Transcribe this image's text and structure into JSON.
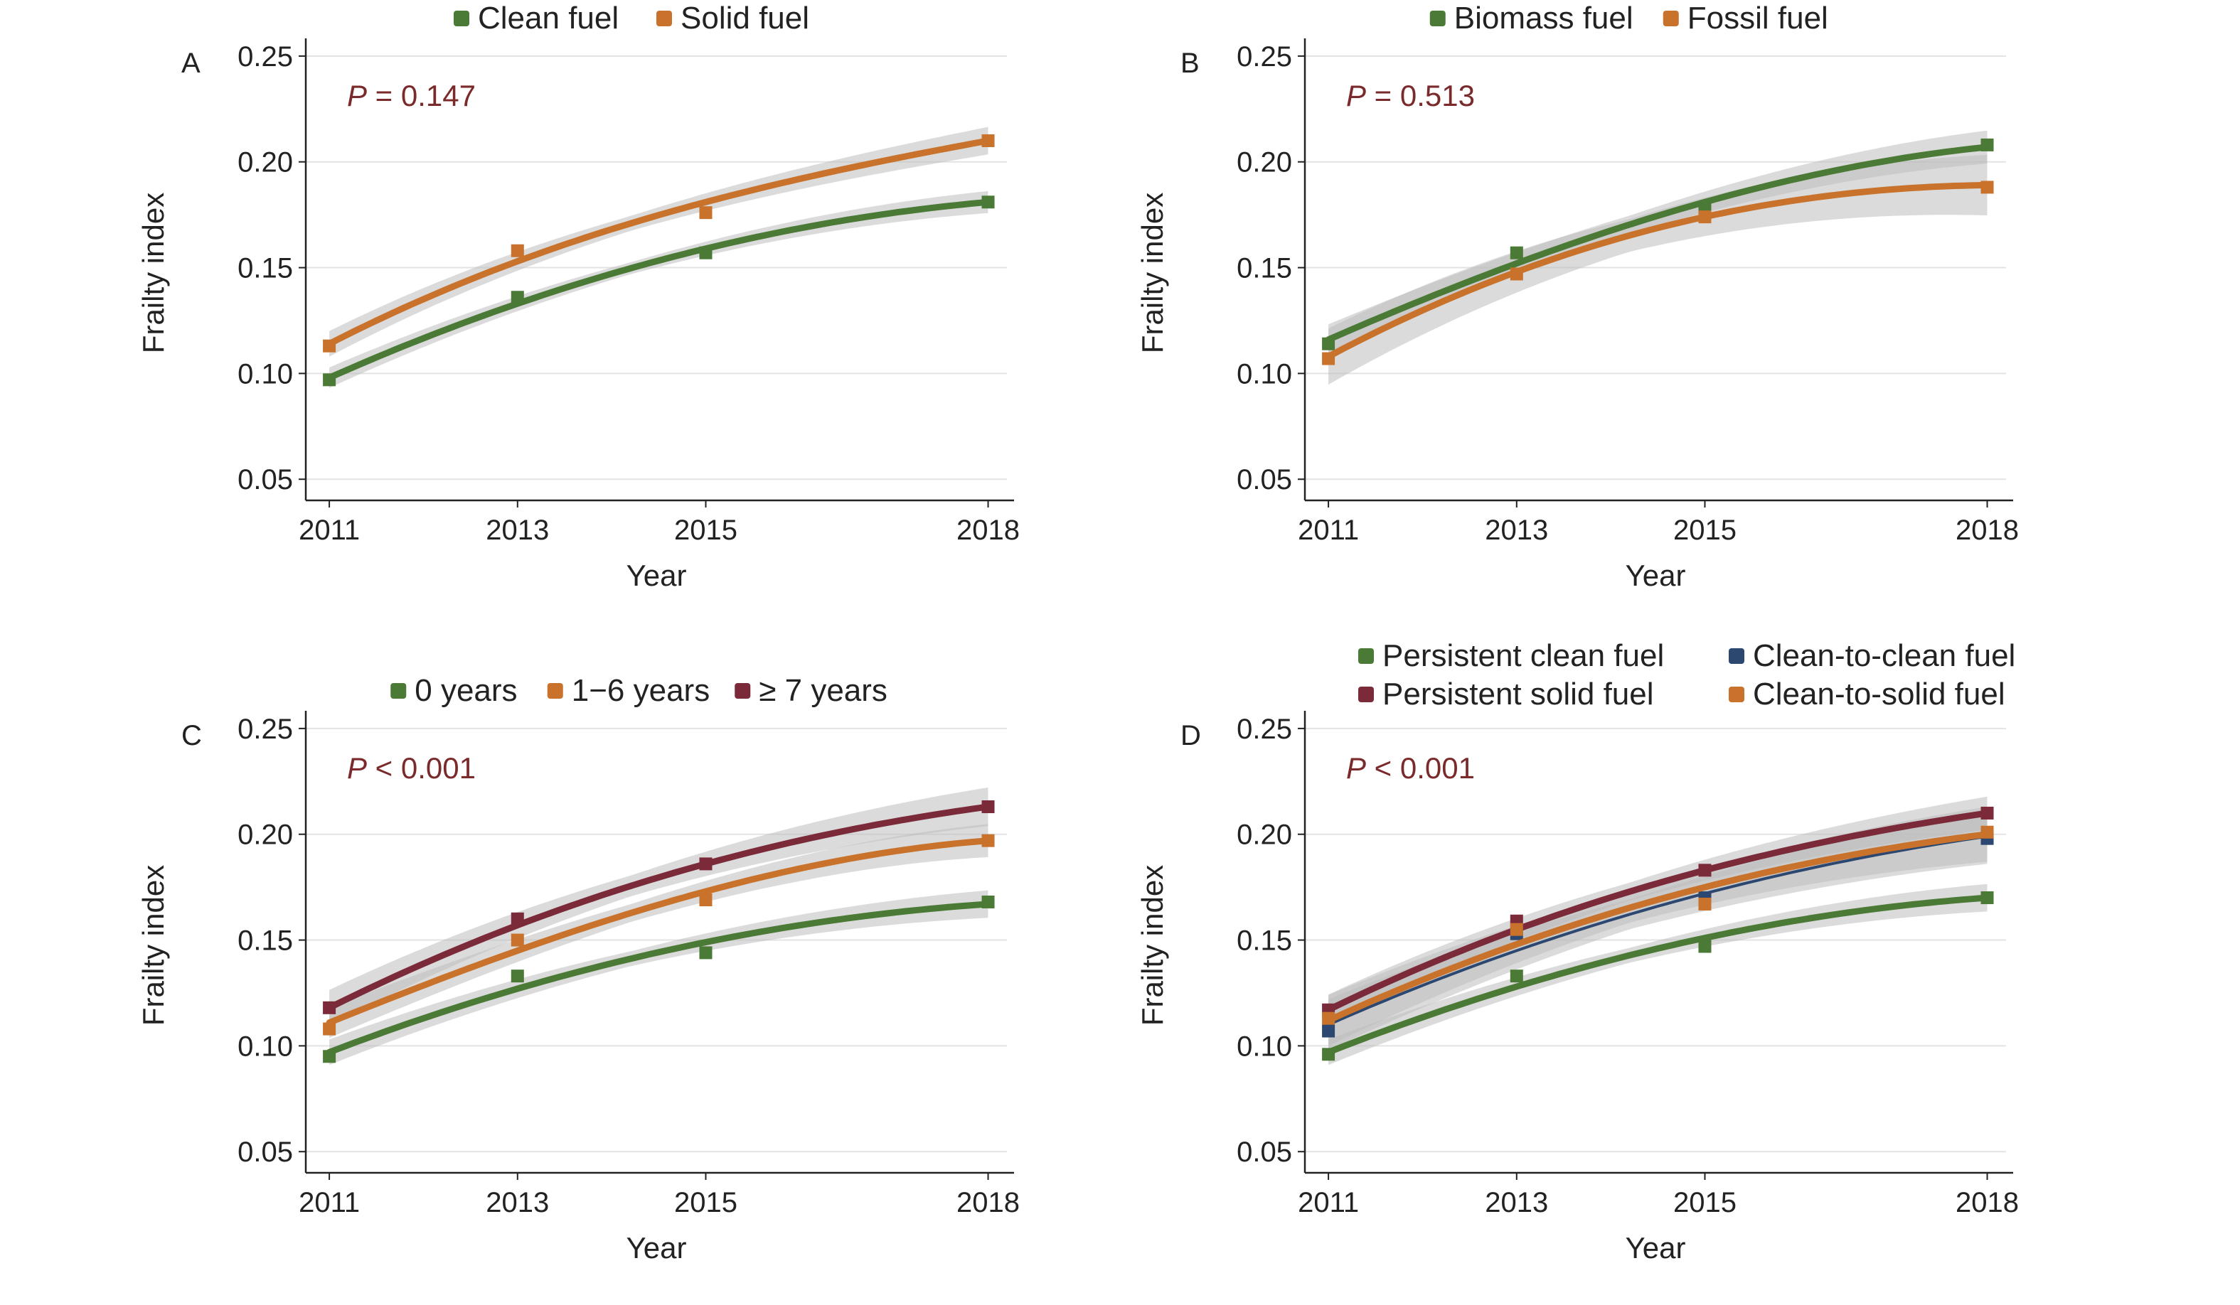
{
  "colors": {
    "green": "#4a7a35",
    "orange": "#c8722b",
    "maroon": "#7b2a3a",
    "navy": "#2c4770",
    "pvalue": "#7a2a2a",
    "band": "#bdbdbd",
    "grid": "#e3e3e3",
    "axis": "#222222"
  },
  "chart_data": [
    {
      "panel": "A",
      "type": "line",
      "pvalue": {
        "italic": "P",
        "rest": " = 0.147"
      },
      "xlabel": "Year",
      "ylabel": "Frailty index",
      "x_ticks": [
        2011,
        2013,
        2015,
        2018
      ],
      "ylim": [
        0.04,
        0.255
      ],
      "y_ticks": [
        "0.05",
        "0.10",
        "0.15",
        "0.20",
        "0.25"
      ],
      "grid": true,
      "legend_position": "top",
      "series": [
        {
          "name": "Clean fuel",
          "color": "#4a7a35",
          "points": [
            [
              2011,
              0.097
            ],
            [
              2013,
              0.136
            ],
            [
              2015,
              0.157
            ],
            [
              2018,
              0.181
            ]
          ],
          "fit": [
            0.098,
            0.133,
            0.159,
            0.181
          ],
          "ci": 0.004
        },
        {
          "name": "Solid fuel",
          "color": "#c8722b",
          "points": [
            [
              2011,
              0.113
            ],
            [
              2013,
              0.158
            ],
            [
              2015,
              0.176
            ],
            [
              2018,
              0.21
            ]
          ],
          "fit": [
            0.114,
            0.153,
            0.181,
            0.21
          ],
          "ci": 0.005
        }
      ]
    },
    {
      "panel": "B",
      "type": "line",
      "pvalue": {
        "italic": "P",
        "rest": " = 0.513"
      },
      "xlabel": "Year",
      "ylabel": "Frailty index",
      "x_ticks": [
        2011,
        2013,
        2015,
        2018
      ],
      "ylim": [
        0.04,
        0.255
      ],
      "y_ticks": [
        "0.05",
        "0.10",
        "0.15",
        "0.20",
        "0.25"
      ],
      "grid": true,
      "legend_position": "top",
      "series": [
        {
          "name": "Biomass fuel",
          "color": "#4a7a35",
          "points": [
            [
              2011,
              0.114
            ],
            [
              2013,
              0.157
            ],
            [
              2015,
              0.178
            ],
            [
              2018,
              0.208
            ]
          ],
          "fit": [
            0.116,
            0.152,
            0.181,
            0.207
          ],
          "ci": 0.006
        },
        {
          "name": "Fossil fuel",
          "color": "#c8722b",
          "points": [
            [
              2011,
              0.107
            ],
            [
              2013,
              0.147
            ],
            [
              2015,
              0.174
            ],
            [
              2018,
              0.188
            ]
          ],
          "fit": [
            0.108,
            0.148,
            0.174,
            0.189
          ],
          "ci": 0.011
        }
      ]
    },
    {
      "panel": "C",
      "type": "line",
      "pvalue": {
        "italic": "P",
        "rest": " < 0.001"
      },
      "xlabel": "Year",
      "ylabel": "Frailty index",
      "x_ticks": [
        2011,
        2013,
        2015,
        2018
      ],
      "ylim": [
        0.04,
        0.255
      ],
      "y_ticks": [
        "0.05",
        "0.10",
        "0.15",
        "0.20",
        "0.25"
      ],
      "grid": true,
      "legend_position": "top",
      "series": [
        {
          "name": "0 years",
          "color": "#4a7a35",
          "points": [
            [
              2011,
              0.095
            ],
            [
              2013,
              0.133
            ],
            [
              2015,
              0.144
            ],
            [
              2018,
              0.168
            ]
          ],
          "fit": [
            0.097,
            0.127,
            0.149,
            0.167
          ],
          "ci": 0.005
        },
        {
          "name": "1−6 years",
          "color": "#c8722b",
          "points": [
            [
              2011,
              0.108
            ],
            [
              2013,
              0.15
            ],
            [
              2015,
              0.169
            ],
            [
              2018,
              0.197
            ]
          ],
          "fit": [
            0.111,
            0.145,
            0.173,
            0.197
          ],
          "ci": 0.006
        },
        {
          "name": "≥ 7 years",
          "color": "#7b2a3a",
          "points": [
            [
              2011,
              0.118
            ],
            [
              2013,
              0.16
            ],
            [
              2015,
              0.186
            ],
            [
              2018,
              0.213
            ]
          ],
          "fit": [
            0.118,
            0.157,
            0.186,
            0.213
          ],
          "ci": 0.007
        }
      ]
    },
    {
      "panel": "D",
      "type": "line",
      "pvalue": {
        "italic": "P",
        "rest": " < 0.001"
      },
      "xlabel": "Year",
      "ylabel": "Frailty index",
      "x_ticks": [
        2011,
        2013,
        2015,
        2018
      ],
      "ylim": [
        0.04,
        0.255
      ],
      "y_ticks": [
        "0.05",
        "0.10",
        "0.15",
        "0.20",
        "0.25"
      ],
      "grid": true,
      "legend_position": "top",
      "series": [
        {
          "name": "Persistent clean fuel",
          "color": "#4a7a35",
          "points": [
            [
              2011,
              0.096
            ],
            [
              2013,
              0.133
            ],
            [
              2015,
              0.147
            ],
            [
              2018,
              0.17
            ]
          ],
          "fit": [
            0.097,
            0.128,
            0.151,
            0.17
          ],
          "ci": 0.005
        },
        {
          "name": "Persistent solid fuel",
          "color": "#7b2a3a",
          "points": [
            [
              2011,
              0.117
            ],
            [
              2013,
              0.159
            ],
            [
              2015,
              0.183
            ],
            [
              2018,
              0.21
            ]
          ],
          "fit": [
            0.117,
            0.155,
            0.183,
            0.21
          ],
          "ci": 0.006
        },
        {
          "name": "Clean-to-clean fuel",
          "color": "#2c4770",
          "thin": true,
          "points": [
            [
              2011,
              0.107
            ],
            [
              2013,
              0.153
            ],
            [
              2015,
              0.17
            ],
            [
              2018,
              0.198
            ]
          ],
          "fit": [
            0.11,
            0.145,
            0.172,
            0.199
          ],
          "ci": 0.01
        },
        {
          "name": "Clean-to-solid fuel",
          "color": "#c8722b",
          "points": [
            [
              2011,
              0.113
            ],
            [
              2013,
              0.155
            ],
            [
              2015,
              0.167
            ],
            [
              2018,
              0.201
            ]
          ],
          "fit": [
            0.112,
            0.148,
            0.175,
            0.2
          ],
          "ci": 0.01
        }
      ]
    }
  ]
}
